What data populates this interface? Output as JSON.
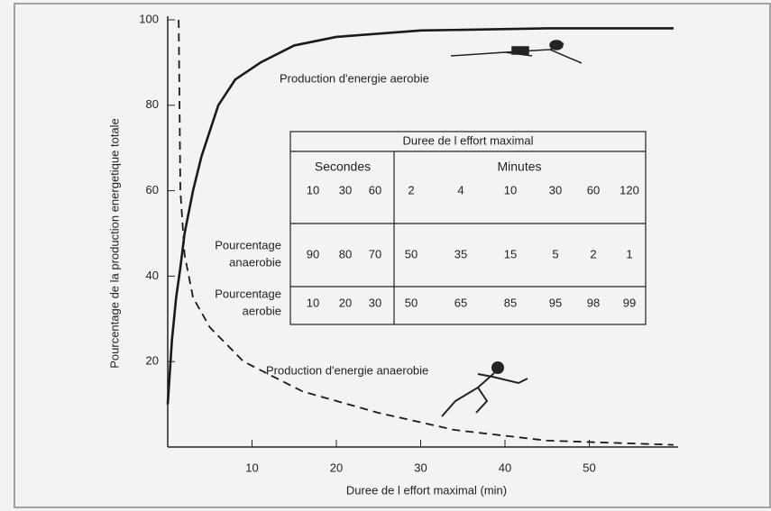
{
  "chart_data": {
    "type": "line",
    "x_label": "Duree de l effort maximal (min)",
    "y_label": "Pourcentage de la production energetique totale",
    "xlim": [
      0,
      60
    ],
    "ylim": [
      0,
      100
    ],
    "xticks": [
      10,
      20,
      30,
      40,
      50
    ],
    "yticks": [
      20,
      40,
      60,
      80,
      100
    ],
    "annotations": [
      "Production d'energie aerobie",
      "Production d'energie anaerobie"
    ],
    "series": [
      {
        "name": "Production d'energie aerobie",
        "color": "#1a1a1a",
        "style": "solid",
        "x": [
          0,
          0.5,
          1,
          1.5,
          2,
          3,
          4,
          6,
          8,
          11,
          15,
          20,
          30,
          45,
          60
        ],
        "values": [
          10,
          25,
          35,
          42,
          50,
          60,
          68,
          80,
          86,
          90,
          94,
          96,
          97.5,
          98,
          98
        ]
      },
      {
        "name": "Production d'energie anaerobie",
        "color": "#1a1a1a",
        "style": "dashed",
        "x": [
          1.3,
          1.5,
          2,
          3,
          5,
          9,
          16,
          25,
          34,
          45,
          60
        ],
        "values": [
          100,
          60,
          45,
          35,
          28,
          20,
          13,
          8,
          4,
          1.5,
          0.5
        ]
      }
    ]
  },
  "table": {
    "title": "Duree de l effort maximal",
    "groups": [
      "Secondes",
      "Minutes"
    ],
    "columns": [
      "10",
      "30",
      "60",
      "2",
      "4",
      "10",
      "30",
      "60",
      "120"
    ],
    "rows": [
      {
        "label": [
          "Pourcentage",
          "anaerobie"
        ],
        "values": [
          "90",
          "80",
          "70",
          "50",
          "35",
          "15",
          "5",
          "2",
          "1"
        ]
      },
      {
        "label": [
          "Pourcentage",
          "aerobie"
        ],
        "values": [
          "10",
          "20",
          "30",
          "50",
          "65",
          "85",
          "95",
          "98",
          "99"
        ]
      }
    ]
  }
}
